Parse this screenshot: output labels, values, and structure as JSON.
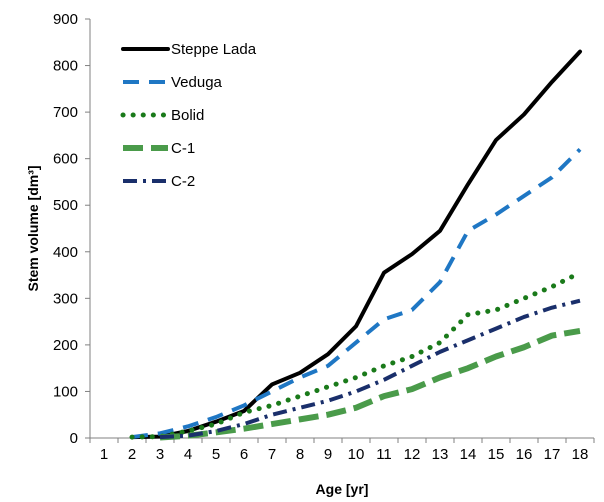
{
  "chart_data": {
    "type": "line",
    "xlabel": "Age [yr]",
    "ylabel": "Stem volume [dm³]",
    "x": [
      1,
      2,
      3,
      4,
      5,
      6,
      7,
      8,
      9,
      10,
      11,
      12,
      13,
      14,
      15,
      16,
      17,
      18
    ],
    "xlim": [
      1,
      18
    ],
    "ylim": [
      0,
      900
    ],
    "yticks": [
      0,
      100,
      200,
      300,
      400,
      500,
      600,
      700,
      800,
      900
    ],
    "grid": false,
    "legend_position": "top-left",
    "series": [
      {
        "name": "Steppe Lada",
        "color": "#000000",
        "style": "solid",
        "x": [
          2,
          3,
          4,
          5,
          6,
          7,
          8,
          9,
          10,
          11,
          12,
          13,
          14,
          15,
          16,
          17,
          18
        ],
        "values": [
          2,
          3,
          15,
          35,
          58,
          115,
          140,
          180,
          240,
          355,
          395,
          445,
          545,
          640,
          695,
          765,
          830
        ]
      },
      {
        "name": "Veduga",
        "color": "#1f77c4",
        "style": "dashed",
        "x": [
          2,
          3,
          4,
          5,
          6,
          7,
          8,
          9,
          10,
          11,
          12,
          13,
          14,
          15,
          16,
          17,
          18
        ],
        "values": [
          2,
          10,
          25,
          45,
          70,
          100,
          130,
          155,
          205,
          255,
          275,
          335,
          445,
          480,
          520,
          560,
          620
        ]
      },
      {
        "name": "Bolid",
        "color": "#1a7a1a",
        "style": "dotted",
        "x": [
          2,
          3,
          4,
          5,
          6,
          7,
          8,
          9,
          10,
          11,
          12,
          13,
          14,
          15,
          16,
          17,
          18
        ],
        "values": [
          2,
          3,
          15,
          30,
          55,
          70,
          90,
          110,
          130,
          155,
          175,
          205,
          265,
          275,
          300,
          325,
          355
        ]
      },
      {
        "name": "C-1",
        "color": "#4a9b4a",
        "style": "longdash",
        "x": [
          3,
          4,
          5,
          6,
          7,
          8,
          9,
          10,
          11,
          12,
          13,
          14,
          15,
          16,
          17,
          18
        ],
        "values": [
          1,
          5,
          12,
          20,
          30,
          40,
          50,
          65,
          90,
          105,
          130,
          150,
          175,
          195,
          220,
          230
        ]
      },
      {
        "name": "C-2",
        "color": "#1a2f6b",
        "style": "dashdot",
        "x": [
          3,
          4,
          5,
          6,
          7,
          8,
          9,
          10,
          11,
          12,
          13,
          14,
          15,
          16,
          17,
          18
        ],
        "values": [
          2,
          5,
          15,
          30,
          50,
          65,
          80,
          100,
          125,
          155,
          185,
          210,
          235,
          260,
          280,
          295
        ]
      }
    ]
  }
}
